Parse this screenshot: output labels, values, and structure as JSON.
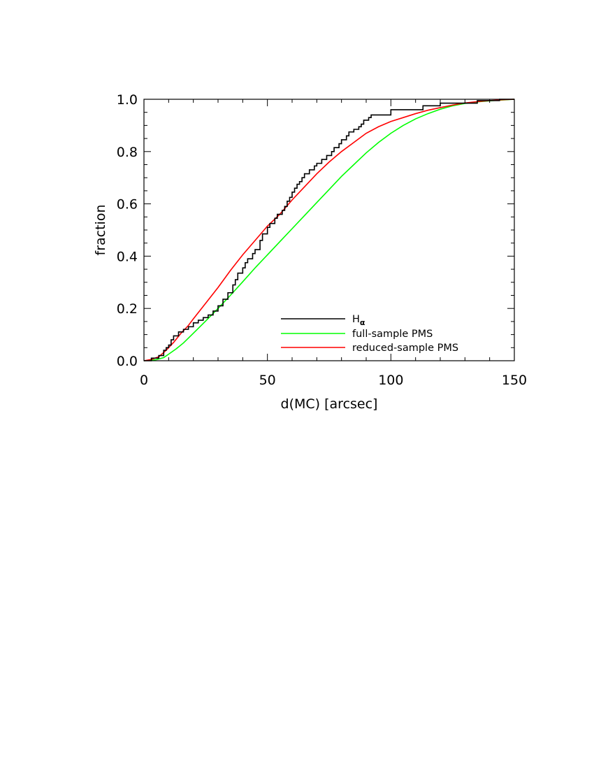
{
  "chart_data": {
    "type": "line",
    "xlabel": "d(MC) [arcsec]",
    "ylabel": "fraction",
    "xlim": [
      0,
      150
    ],
    "ylim": [
      0,
      1.0
    ],
    "x_ticks": [
      0,
      50,
      100,
      150
    ],
    "x_tick_labels": [
      "0",
      "50",
      "100",
      "150"
    ],
    "y_ticks": [
      0.0,
      0.2,
      0.4,
      0.6,
      0.8,
      1.0
    ],
    "y_tick_labels": [
      "0.0",
      "0.2",
      "0.4",
      "0.6",
      "0.8",
      "1.0"
    ],
    "grid": false,
    "legend_position": "bottom-right",
    "series": [
      {
        "name": "H",
        "name_subscript": "α",
        "color": "#000000",
        "step": true,
        "points": [
          [
            0,
            0
          ],
          [
            3,
            0
          ],
          [
            3,
            0.01
          ],
          [
            6,
            0.01
          ],
          [
            6,
            0.02
          ],
          [
            8,
            0.02
          ],
          [
            8,
            0.04
          ],
          [
            9,
            0.04
          ],
          [
            9,
            0.05
          ],
          [
            10,
            0.05
          ],
          [
            10,
            0.06
          ],
          [
            11,
            0.06
          ],
          [
            11,
            0.08
          ],
          [
            12,
            0.08
          ],
          [
            12,
            0.095
          ],
          [
            14,
            0.095
          ],
          [
            14,
            0.11
          ],
          [
            16,
            0.11
          ],
          [
            16,
            0.12
          ],
          [
            18,
            0.12
          ],
          [
            18,
            0.13
          ],
          [
            20,
            0.13
          ],
          [
            20,
            0.145
          ],
          [
            22,
            0.145
          ],
          [
            22,
            0.155
          ],
          [
            24,
            0.155
          ],
          [
            24,
            0.165
          ],
          [
            26,
            0.165
          ],
          [
            26,
            0.175
          ],
          [
            28,
            0.175
          ],
          [
            28,
            0.19
          ],
          [
            30,
            0.19
          ],
          [
            30,
            0.21
          ],
          [
            32,
            0.21
          ],
          [
            32,
            0.235
          ],
          [
            34,
            0.235
          ],
          [
            34,
            0.26
          ],
          [
            36,
            0.26
          ],
          [
            36,
            0.29
          ],
          [
            37,
            0.29
          ],
          [
            37,
            0.31
          ],
          [
            38,
            0.31
          ],
          [
            38,
            0.335
          ],
          [
            40,
            0.335
          ],
          [
            40,
            0.355
          ],
          [
            41,
            0.355
          ],
          [
            41,
            0.375
          ],
          [
            42,
            0.375
          ],
          [
            42,
            0.39
          ],
          [
            44,
            0.39
          ],
          [
            44,
            0.41
          ],
          [
            45,
            0.41
          ],
          [
            45,
            0.425
          ],
          [
            47,
            0.425
          ],
          [
            47,
            0.46
          ],
          [
            48,
            0.46
          ],
          [
            48,
            0.485
          ],
          [
            50,
            0.485
          ],
          [
            50,
            0.51
          ],
          [
            51,
            0.51
          ],
          [
            51,
            0.525
          ],
          [
            53,
            0.525
          ],
          [
            53,
            0.545
          ],
          [
            54,
            0.545
          ],
          [
            54,
            0.56
          ],
          [
            56,
            0.56
          ],
          [
            56,
            0.575
          ],
          [
            57,
            0.575
          ],
          [
            57,
            0.59
          ],
          [
            58,
            0.59
          ],
          [
            58,
            0.61
          ],
          [
            59,
            0.61
          ],
          [
            59,
            0.625
          ],
          [
            60,
            0.625
          ],
          [
            60,
            0.645
          ],
          [
            61,
            0.645
          ],
          [
            61,
            0.66
          ],
          [
            62,
            0.66
          ],
          [
            62,
            0.675
          ],
          [
            63,
            0.675
          ],
          [
            63,
            0.685
          ],
          [
            64,
            0.685
          ],
          [
            64,
            0.7
          ],
          [
            65,
            0.7
          ],
          [
            65,
            0.715
          ],
          [
            67,
            0.715
          ],
          [
            67,
            0.73
          ],
          [
            69,
            0.73
          ],
          [
            69,
            0.745
          ],
          [
            70,
            0.745
          ],
          [
            70,
            0.755
          ],
          [
            72,
            0.755
          ],
          [
            72,
            0.77
          ],
          [
            74,
            0.77
          ],
          [
            74,
            0.785
          ],
          [
            76,
            0.785
          ],
          [
            76,
            0.8
          ],
          [
            77,
            0.8
          ],
          [
            77,
            0.815
          ],
          [
            79,
            0.815
          ],
          [
            79,
            0.83
          ],
          [
            80,
            0.83
          ],
          [
            80,
            0.845
          ],
          [
            82,
            0.845
          ],
          [
            82,
            0.86
          ],
          [
            83,
            0.86
          ],
          [
            83,
            0.875
          ],
          [
            85,
            0.875
          ],
          [
            85,
            0.885
          ],
          [
            87,
            0.885
          ],
          [
            87,
            0.895
          ],
          [
            88,
            0.895
          ],
          [
            88,
            0.905
          ],
          [
            89,
            0.905
          ],
          [
            89,
            0.92
          ],
          [
            91,
            0.92
          ],
          [
            91,
            0.93
          ],
          [
            92,
            0.93
          ],
          [
            92,
            0.94
          ],
          [
            100,
            0.94
          ],
          [
            100,
            0.96
          ],
          [
            113,
            0.96
          ],
          [
            113,
            0.975
          ],
          [
            120,
            0.975
          ],
          [
            120,
            0.985
          ],
          [
            135,
            0.985
          ],
          [
            135,
            0.995
          ],
          [
            144,
            0.995
          ],
          [
            144,
            1.0
          ],
          [
            150,
            1.0
          ]
        ]
      },
      {
        "name": "full-sample PMS",
        "color": "#00ff00",
        "step": false,
        "points": [
          [
            0,
            0
          ],
          [
            3,
            0.002
          ],
          [
            5,
            0.004
          ],
          [
            8,
            0.012
          ],
          [
            10,
            0.025
          ],
          [
            13,
            0.045
          ],
          [
            16,
            0.068
          ],
          [
            20,
            0.105
          ],
          [
            25,
            0.152
          ],
          [
            30,
            0.2
          ],
          [
            35,
            0.25
          ],
          [
            40,
            0.302
          ],
          [
            45,
            0.355
          ],
          [
            50,
            0.405
          ],
          [
            55,
            0.455
          ],
          [
            60,
            0.505
          ],
          [
            65,
            0.555
          ],
          [
            70,
            0.605
          ],
          [
            75,
            0.655
          ],
          [
            80,
            0.705
          ],
          [
            85,
            0.75
          ],
          [
            90,
            0.795
          ],
          [
            95,
            0.835
          ],
          [
            100,
            0.87
          ],
          [
            105,
            0.9
          ],
          [
            110,
            0.925
          ],
          [
            115,
            0.945
          ],
          [
            120,
            0.962
          ],
          [
            125,
            0.975
          ],
          [
            130,
            0.984
          ],
          [
            135,
            0.99
          ],
          [
            140,
            0.994
          ],
          [
            145,
            0.997
          ],
          [
            150,
            1.0
          ]
        ]
      },
      {
        "name": "reduced-sample PMS",
        "color": "#ff0000",
        "step": false,
        "points": [
          [
            0,
            0
          ],
          [
            3,
            0.005
          ],
          [
            6,
            0.015
          ],
          [
            9,
            0.04
          ],
          [
            12,
            0.07
          ],
          [
            15,
            0.105
          ],
          [
            18,
            0.135
          ],
          [
            20,
            0.16
          ],
          [
            25,
            0.22
          ],
          [
            30,
            0.28
          ],
          [
            35,
            0.345
          ],
          [
            40,
            0.405
          ],
          [
            45,
            0.46
          ],
          [
            50,
            0.515
          ],
          [
            55,
            0.56
          ],
          [
            60,
            0.615
          ],
          [
            65,
            0.665
          ],
          [
            70,
            0.715
          ],
          [
            75,
            0.76
          ],
          [
            80,
            0.8
          ],
          [
            85,
            0.835
          ],
          [
            90,
            0.87
          ],
          [
            95,
            0.895
          ],
          [
            100,
            0.915
          ],
          [
            105,
            0.93
          ],
          [
            110,
            0.945
          ],
          [
            115,
            0.958
          ],
          [
            120,
            0.968
          ],
          [
            125,
            0.978
          ],
          [
            130,
            0.986
          ],
          [
            135,
            0.991
          ],
          [
            140,
            0.995
          ],
          [
            145,
            0.998
          ],
          [
            150,
            1.0
          ]
        ]
      }
    ]
  }
}
